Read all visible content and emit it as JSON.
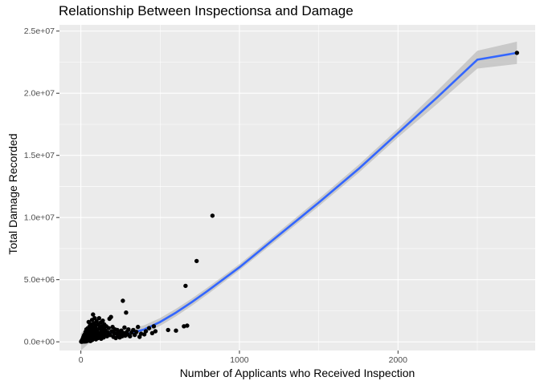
{
  "chart_data": {
    "type": "scatter",
    "title": "Relationship Between Inspectionsa and Damage",
    "xlabel": "Number of Applicants who Received Inspection",
    "ylabel": "Total Damage Recorded",
    "xlim": [
      -135,
      2865
    ],
    "ylim": [
      -700000,
      25500000
    ],
    "x_ticks": [
      0,
      1000,
      2000
    ],
    "x_tick_labels": [
      "0",
      "1000",
      "2000"
    ],
    "y_ticks": [
      0,
      5000000,
      10000000,
      15000000,
      20000000,
      25000000
    ],
    "y_tick_labels": [
      "0.0e+00",
      "5.0e+06",
      "1.0e+07",
      "1.5e+07",
      "2.0e+07",
      "2.5e+07"
    ],
    "grid": true,
    "colors": {
      "panel": "#ebebeb",
      "grid": "#ffffff",
      "point": "#000000",
      "smooth": "#3366ff",
      "ribbon": "#bdbdbd"
    },
    "points": [
      [
        2,
        10000
      ],
      [
        4,
        30000
      ],
      [
        5,
        80000
      ],
      [
        7,
        5000
      ],
      [
        9,
        150000
      ],
      [
        10,
        40000
      ],
      [
        12,
        250000
      ],
      [
        14,
        60000
      ],
      [
        15,
        350000
      ],
      [
        17,
        120000
      ],
      [
        19,
        500000
      ],
      [
        20,
        20000
      ],
      [
        22,
        200000
      ],
      [
        24,
        600000
      ],
      [
        25,
        90000
      ],
      [
        27,
        400000
      ],
      [
        29,
        800000
      ],
      [
        30,
        30000
      ],
      [
        32,
        300000
      ],
      [
        34,
        150000
      ],
      [
        35,
        1000000
      ],
      [
        37,
        50000
      ],
      [
        39,
        450000
      ],
      [
        40,
        700000
      ],
      [
        42,
        250000
      ],
      [
        44,
        1100000
      ],
      [
        45,
        100000
      ],
      [
        47,
        550000
      ],
      [
        49,
        1600000
      ],
      [
        50,
        350000
      ],
      [
        52,
        900000
      ],
      [
        54,
        200000
      ],
      [
        55,
        750000
      ],
      [
        57,
        1300000
      ],
      [
        59,
        400000
      ],
      [
        60,
        60000
      ],
      [
        62,
        1050000
      ],
      [
        64,
        500000
      ],
      [
        65,
        1400000
      ],
      [
        67,
        300000
      ],
      [
        69,
        850000
      ],
      [
        70,
        1750000
      ],
      [
        72,
        150000
      ],
      [
        74,
        650000
      ],
      [
        75,
        1200000
      ],
      [
        77,
        2200000
      ],
      [
        79,
        450000
      ],
      [
        80,
        950000
      ],
      [
        82,
        250000
      ],
      [
        84,
        1500000
      ],
      [
        85,
        750000
      ],
      [
        87,
        1900000
      ],
      [
        89,
        350000
      ],
      [
        90,
        1100000
      ],
      [
        92,
        600000
      ],
      [
        94,
        1300000
      ],
      [
        95,
        200000
      ],
      [
        97,
        800000
      ],
      [
        99,
        1650000
      ],
      [
        100,
        500000
      ],
      [
        105,
        1000000
      ],
      [
        108,
        300000
      ],
      [
        110,
        1400000
      ],
      [
        113,
        700000
      ],
      [
        115,
        1900000
      ],
      [
        118,
        400000
      ],
      [
        120,
        1150000
      ],
      [
        123,
        600000
      ],
      [
        125,
        1550000
      ],
      [
        128,
        250000
      ],
      [
        130,
        900000
      ],
      [
        133,
        1250000
      ],
      [
        135,
        500000
      ],
      [
        138,
        1700000
      ],
      [
        140,
        750000
      ],
      [
        143,
        350000
      ],
      [
        145,
        1050000
      ],
      [
        148,
        1400000
      ],
      [
        150,
        600000
      ],
      [
        155,
        900000
      ],
      [
        160,
        1250000
      ],
      [
        165,
        450000
      ],
      [
        170,
        750000
      ],
      [
        175,
        1100000
      ],
      [
        180,
        1850000
      ],
      [
        185,
        550000
      ],
      [
        190,
        2000000
      ],
      [
        195,
        850000
      ],
      [
        200,
        1200000
      ],
      [
        205,
        400000
      ],
      [
        210,
        700000
      ],
      [
        215,
        1000000
      ],
      [
        220,
        300000
      ],
      [
        225,
        650000
      ],
      [
        230,
        950000
      ],
      [
        235,
        500000
      ],
      [
        240,
        800000
      ],
      [
        245,
        350000
      ],
      [
        250,
        600000
      ],
      [
        255,
        900000
      ],
      [
        260,
        450000
      ],
      [
        265,
        3300000
      ],
      [
        270,
        700000
      ],
      [
        275,
        1150000
      ],
      [
        280,
        500000
      ],
      [
        285,
        2350000
      ],
      [
        290,
        800000
      ],
      [
        295,
        600000
      ],
      [
        300,
        1000000
      ],
      [
        310,
        450000
      ],
      [
        320,
        750000
      ],
      [
        330,
        950000
      ],
      [
        340,
        550000
      ],
      [
        350,
        800000
      ],
      [
        360,
        1200000
      ],
      [
        370,
        400000
      ],
      [
        380,
        650000
      ],
      [
        400,
        600000
      ],
      [
        410,
        850000
      ],
      [
        430,
        1100000
      ],
      [
        450,
        700000
      ],
      [
        460,
        1250000
      ],
      [
        470,
        850000
      ],
      [
        550,
        950000
      ],
      [
        600,
        900000
      ],
      [
        650,
        1250000
      ],
      [
        660,
        4500000
      ],
      [
        670,
        1300000
      ],
      [
        730,
        6500000
      ],
      [
        830,
        10150000
      ],
      [
        2750,
        23250000
      ]
    ],
    "smooth": [
      [
        0,
        0
      ],
      [
        50,
        500000
      ],
      [
        100,
        750000
      ],
      [
        150,
        800000
      ],
      [
        200,
        750000
      ],
      [
        250,
        600000
      ],
      [
        300,
        650000
      ],
      [
        400,
        1000000
      ],
      [
        500,
        1600000
      ],
      [
        600,
        2350000
      ],
      [
        700,
        3200000
      ],
      [
        800,
        4100000
      ],
      [
        1000,
        6000000
      ],
      [
        1250,
        8600000
      ],
      [
        1500,
        11200000
      ],
      [
        1750,
        13900000
      ],
      [
        2000,
        16800000
      ],
      [
        2250,
        19700000
      ],
      [
        2500,
        22700000
      ],
      [
        2750,
        23250000
      ]
    ],
    "smooth_band": [
      [
        0,
        700000
      ],
      [
        250,
        350000
      ],
      [
        1000,
        250000
      ],
      [
        2000,
        350000
      ],
      [
        2750,
        900000
      ]
    ]
  }
}
